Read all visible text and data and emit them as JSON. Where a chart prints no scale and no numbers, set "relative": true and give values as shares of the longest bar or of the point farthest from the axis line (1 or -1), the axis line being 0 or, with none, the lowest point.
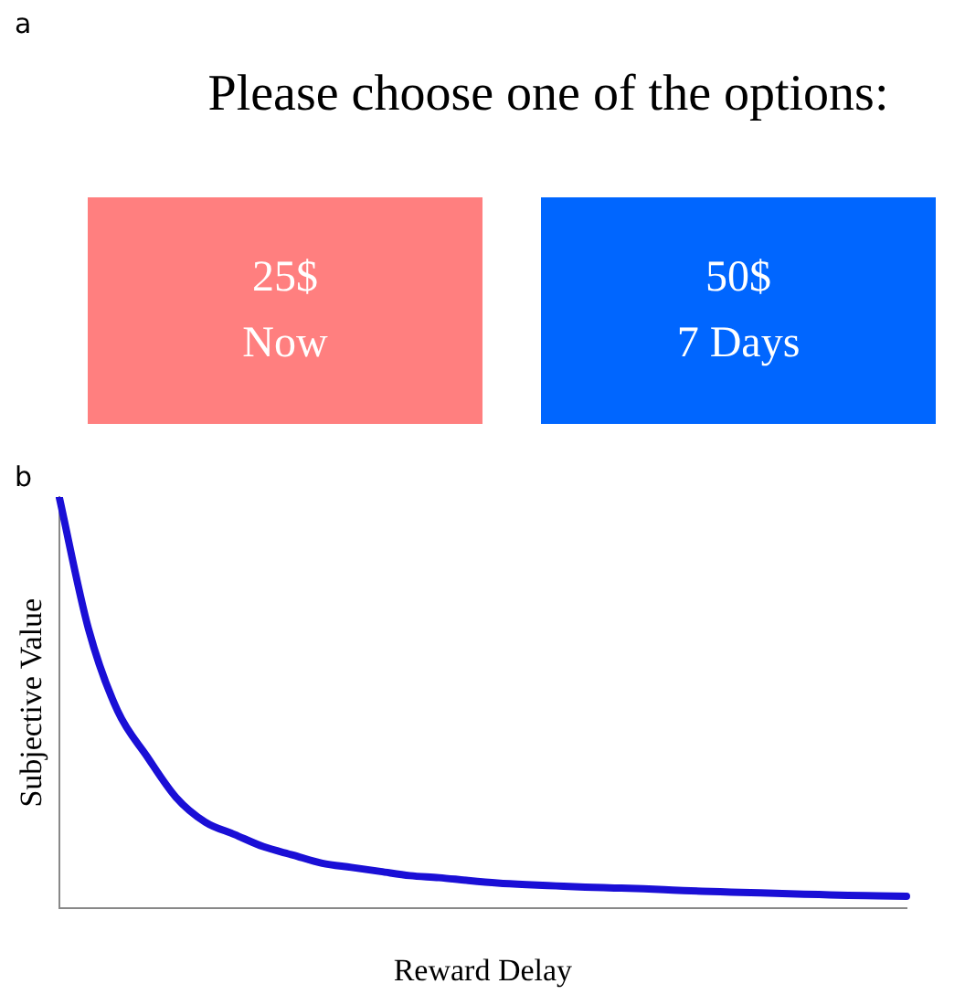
{
  "chart_data": [
    {
      "type": "other",
      "title": "Please choose one of the options:",
      "annotations": [
        "a",
        "25$",
        "Now",
        "50$",
        "7 Days"
      ]
    },
    {
      "type": "line",
      "relative": true,
      "xlabel": "Reward Delay",
      "ylabel": "Subjective Value",
      "annotations": [
        "b"
      ],
      "grid": false,
      "legend": false,
      "marker": "none",
      "line_style": "solid",
      "categories": [
        null,
        null,
        null,
        null,
        null,
        null,
        null,
        null,
        null,
        null,
        null,
        null,
        null,
        null,
        null,
        null,
        null,
        null,
        null,
        null,
        null,
        null,
        null,
        null,
        null,
        null,
        null,
        null,
        null,
        null
      ],
      "series": [
        {
          "color": "#1a0fd6",
          "values": [
            1,
            0.68,
            0.48,
            0.37,
            0.27,
            0.21,
            0.18,
            0.15,
            0.13,
            0.11,
            0.1,
            0.09,
            0.08,
            0.075,
            0.068,
            0.062,
            0.058,
            0.055,
            0.052,
            0.05,
            0.048,
            0.045,
            0.042,
            0.04,
            0.038,
            0.036,
            0.034,
            0.032,
            0.031,
            0.03
          ]
        }
      ]
    }
  ]
}
